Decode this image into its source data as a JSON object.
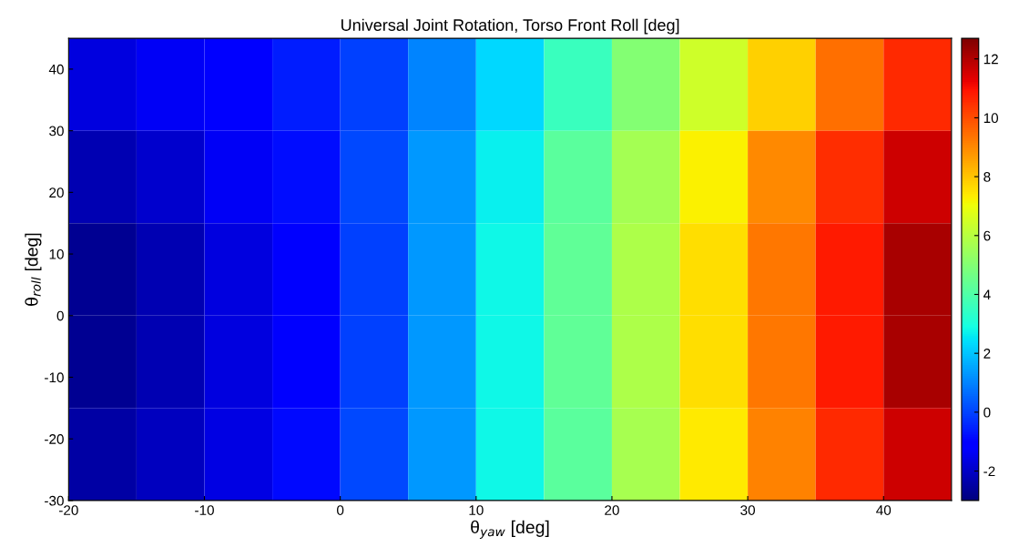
{
  "chart_data": {
    "type": "heatmap",
    "title": "Universal Joint Rotation, Torso Front Roll [deg]",
    "xlabel": "θ$_{yaw}$ [deg]",
    "ylabel": "θ$_{roll}$ [deg]",
    "x": [
      -17.5,
      -12.5,
      -7.5,
      -2.5,
      2.5,
      7.5,
      12.5,
      17.5,
      22.5,
      27.5,
      32.5,
      37.5,
      42.5
    ],
    "y": [
      37.5,
      22.5,
      7.5,
      -7.5,
      -22.5
    ],
    "cells": [
      [
        -1.7,
        -1.4,
        -1.0,
        -0.6,
        0.0,
        1.0,
        2.3,
        3.6,
        5.0,
        6.4,
        7.8,
        9.4,
        10.6
      ],
      [
        -2.3,
        -1.9,
        -1.4,
        -0.8,
        0.1,
        1.3,
        2.7,
        4.2,
        5.6,
        7.3,
        9.0,
        10.5,
        11.6
      ],
      [
        -2.7,
        -2.3,
        -1.7,
        -1.0,
        0.0,
        1.3,
        2.8,
        4.3,
        5.8,
        7.6,
        9.3,
        10.8,
        12.1
      ],
      [
        -2.7,
        -2.3,
        -1.7,
        -1.0,
        0.0,
        1.3,
        2.8,
        4.3,
        5.8,
        7.6,
        9.3,
        10.8,
        12.1
      ],
      [
        -2.5,
        -2.1,
        -1.6,
        -0.9,
        0.1,
        1.3,
        2.8,
        4.2,
        5.7,
        7.4,
        9.1,
        10.6,
        11.6
      ]
    ],
    "xlim": [
      -20,
      45
    ],
    "ylim": [
      -30,
      45
    ],
    "xticks": [
      -20,
      -10,
      0,
      10,
      20,
      30,
      40
    ],
    "yticks": [
      -30,
      -20,
      -10,
      0,
      10,
      20,
      30,
      40
    ],
    "clim": [
      -3,
      12.7
    ],
    "cticks": [
      -2,
      0,
      2,
      4,
      6,
      8,
      10,
      12
    ]
  }
}
